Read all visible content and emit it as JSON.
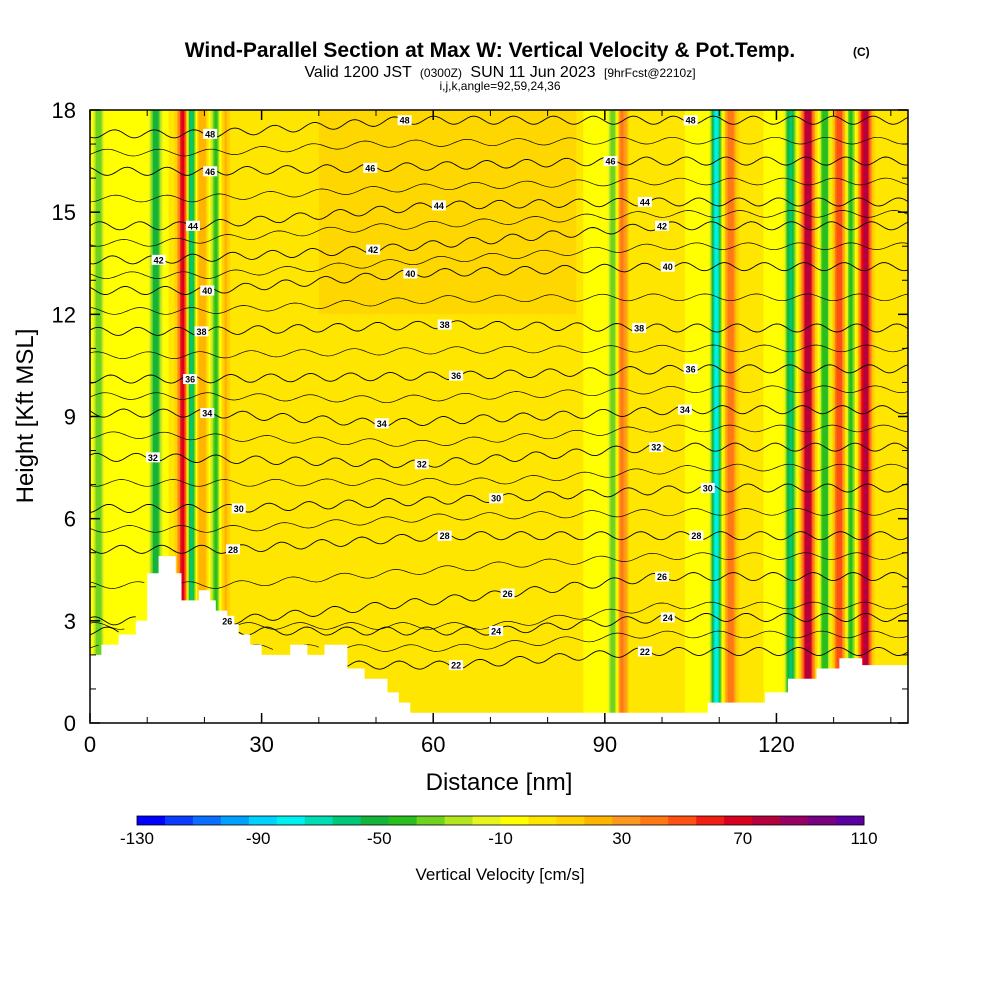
{
  "chart_data": {
    "type": "heatmap",
    "title": "Wind-Parallel Section at Max W: Vertical Velocity & Pot.Temp.",
    "title_mark": "(C)",
    "subtitle": {
      "valid": "Valid 1200 JST",
      "zulu": "(0300Z)",
      "date": "SUN 11 Jun 2023",
      "forecast": "[9hrFcst@2210z]"
    },
    "info_line": "i,j,k,angle=92,59,24,36",
    "xlabel": "Distance [nm]",
    "ylabel": "Height [Kft MSL]",
    "xlim": [
      0,
      143
    ],
    "ylim": [
      0,
      18
    ],
    "x_ticks": [
      "0",
      "30",
      "60",
      "90",
      "120"
    ],
    "y_ticks": [
      "0",
      "3",
      "6",
      "9",
      "12",
      "15",
      "18"
    ],
    "colorbar": {
      "label": "Vertical Velocity [cm/s]",
      "tick_labels": [
        "-130",
        "-90",
        "-50",
        "-10",
        "30",
        "70",
        "110"
      ],
      "min": -130,
      "max": 110,
      "step": 10,
      "colors": [
        "#0000ff",
        "#0a3cff",
        "#0a6eff",
        "#00a0ff",
        "#00d2ff",
        "#00f0f0",
        "#00dcb4",
        "#00c878",
        "#14b43c",
        "#28be1e",
        "#6ed21e",
        "#b4e61e",
        "#e6f51e",
        "#ffff00",
        "#ffe600",
        "#ffd200",
        "#ffb400",
        "#ff961e",
        "#ff7814",
        "#ff5014",
        "#f01e14",
        "#d7001e",
        "#b4003c",
        "#960064",
        "#780082",
        "#5a00a0"
      ]
    },
    "background_w": 10,
    "updrafts_w": [
      {
        "x": 16.5,
        "peak": 105
      },
      {
        "x": 125.5,
        "peak": 100
      },
      {
        "x": 135.5,
        "peak": 100
      },
      {
        "x": 131.0,
        "peak": 70
      },
      {
        "x": 112.0,
        "peak": 60
      },
      {
        "x": 93.0,
        "peak": 55
      },
      {
        "x": 19.5,
        "peak": 40
      },
      {
        "x": 23.5,
        "peak": 35
      }
    ],
    "downdrafts_w": [
      {
        "x": 11.5,
        "peak": -50
      },
      {
        "x": 17.5,
        "peak": -90
      },
      {
        "x": 22.0,
        "peak": -40
      },
      {
        "x": 91.5,
        "peak": -35
      },
      {
        "x": 109.5,
        "peak": -75
      },
      {
        "x": 122.5,
        "peak": -55
      },
      {
        "x": 128.5,
        "peak": -40
      },
      {
        "x": 133.0,
        "peak": -40
      },
      {
        "x": 1.5,
        "peak": -30
      }
    ],
    "terrain_height_kft": [
      {
        "x": 0,
        "h": 2.0
      },
      {
        "x": 2,
        "h": 2.3
      },
      {
        "x": 5,
        "h": 2.6
      },
      {
        "x": 8,
        "h": 3.0
      },
      {
        "x": 10,
        "h": 4.4
      },
      {
        "x": 12,
        "h": 4.9
      },
      {
        "x": 13.5,
        "h": 4.9
      },
      {
        "x": 15,
        "h": 4.4
      },
      {
        "x": 16,
        "h": 3.6
      },
      {
        "x": 18,
        "h": 3.6
      },
      {
        "x": 19,
        "h": 3.9
      },
      {
        "x": 21,
        "h": 3.6
      },
      {
        "x": 22,
        "h": 3.3
      },
      {
        "x": 24,
        "h": 2.9
      },
      {
        "x": 26,
        "h": 2.6
      },
      {
        "x": 28,
        "h": 2.3
      },
      {
        "x": 30,
        "h": 2.0
      },
      {
        "x": 35,
        "h": 2.3
      },
      {
        "x": 38,
        "h": 2.0
      },
      {
        "x": 41,
        "h": 2.3
      },
      {
        "x": 45,
        "h": 1.6
      },
      {
        "x": 48,
        "h": 1.3
      },
      {
        "x": 52,
        "h": 0.9
      },
      {
        "x": 54,
        "h": 0.6
      },
      {
        "x": 56,
        "h": 0.3
      },
      {
        "x": 63,
        "h": 0.3
      },
      {
        "x": 70,
        "h": 0.3
      },
      {
        "x": 100,
        "h": 0.3
      },
      {
        "x": 108,
        "h": 0.6
      },
      {
        "x": 118,
        "h": 0.9
      },
      {
        "x": 122,
        "h": 1.3
      },
      {
        "x": 127,
        "h": 1.6
      },
      {
        "x": 131,
        "h": 1.9
      },
      {
        "x": 135,
        "h": 1.7
      },
      {
        "x": 143,
        "h": 1.7
      }
    ],
    "theta_contours": [
      {
        "label": "22",
        "label_x": 64,
        "label_h": 1.7
      },
      {
        "label": "22",
        "label_x": 97,
        "label_h": 2.1
      },
      {
        "label": "24",
        "label_x": 71,
        "label_h": 2.7
      },
      {
        "label": "24",
        "label_x": 101,
        "label_h": 3.1
      },
      {
        "label": "26",
        "label_x": 24,
        "label_h": 3.0
      },
      {
        "label": "26",
        "label_x": 73,
        "label_h": 3.8
      },
      {
        "label": "26",
        "label_x": 100,
        "label_h": 4.3
      },
      {
        "label": "28",
        "label_x": 25,
        "label_h": 5.1
      },
      {
        "label": "28",
        "label_x": 62,
        "label_h": 5.5
      },
      {
        "label": "28",
        "label_x": 106,
        "label_h": 5.5
      },
      {
        "label": "30",
        "label_x": 26,
        "label_h": 6.3
      },
      {
        "label": "30",
        "label_x": 71,
        "label_h": 6.6
      },
      {
        "label": "30",
        "label_x": 108,
        "label_h": 6.9
      },
      {
        "label": "32",
        "label_x": 11,
        "label_h": 7.8
      },
      {
        "label": "32",
        "label_x": 58,
        "label_h": 7.6
      },
      {
        "label": "32",
        "label_x": 99,
        "label_h": 8.1
      },
      {
        "label": "34",
        "label_x": 20.5,
        "label_h": 9.1
      },
      {
        "label": "34",
        "label_x": 51,
        "label_h": 8.8
      },
      {
        "label": "34",
        "label_x": 104,
        "label_h": 9.2
      },
      {
        "label": "36",
        "label_x": 17.5,
        "label_h": 10.1
      },
      {
        "label": "36",
        "label_x": 64,
        "label_h": 10.2
      },
      {
        "label": "36",
        "label_x": 105,
        "label_h": 10.4
      },
      {
        "label": "38",
        "label_x": 19.5,
        "label_h": 11.5
      },
      {
        "label": "38",
        "label_x": 62,
        "label_h": 11.7
      },
      {
        "label": "38",
        "label_x": 96,
        "label_h": 11.6
      },
      {
        "label": "40",
        "label_x": 20.5,
        "label_h": 12.7
      },
      {
        "label": "40",
        "label_x": 56,
        "label_h": 13.2
      },
      {
        "label": "40",
        "label_x": 101,
        "label_h": 13.4
      },
      {
        "label": "42",
        "label_x": 12,
        "label_h": 13.6
      },
      {
        "label": "42",
        "label_x": 49.5,
        "label_h": 13.9
      },
      {
        "label": "42",
        "label_x": 100,
        "label_h": 14.6
      },
      {
        "label": "44",
        "label_x": 18,
        "label_h": 14.6
      },
      {
        "label": "44",
        "label_x": 61,
        "label_h": 15.2
      },
      {
        "label": "44",
        "label_x": 97,
        "label_h": 15.3
      },
      {
        "label": "46",
        "label_x": 21,
        "label_h": 16.2
      },
      {
        "label": "46",
        "label_x": 49,
        "label_h": 16.3
      },
      {
        "label": "46",
        "label_x": 91,
        "label_h": 16.5
      },
      {
        "label": "48",
        "label_x": 21,
        "label_h": 17.3
      },
      {
        "label": "48",
        "label_x": 55,
        "label_h": 17.7
      },
      {
        "label": "48",
        "label_x": 105,
        "label_h": 17.7
      }
    ]
  }
}
